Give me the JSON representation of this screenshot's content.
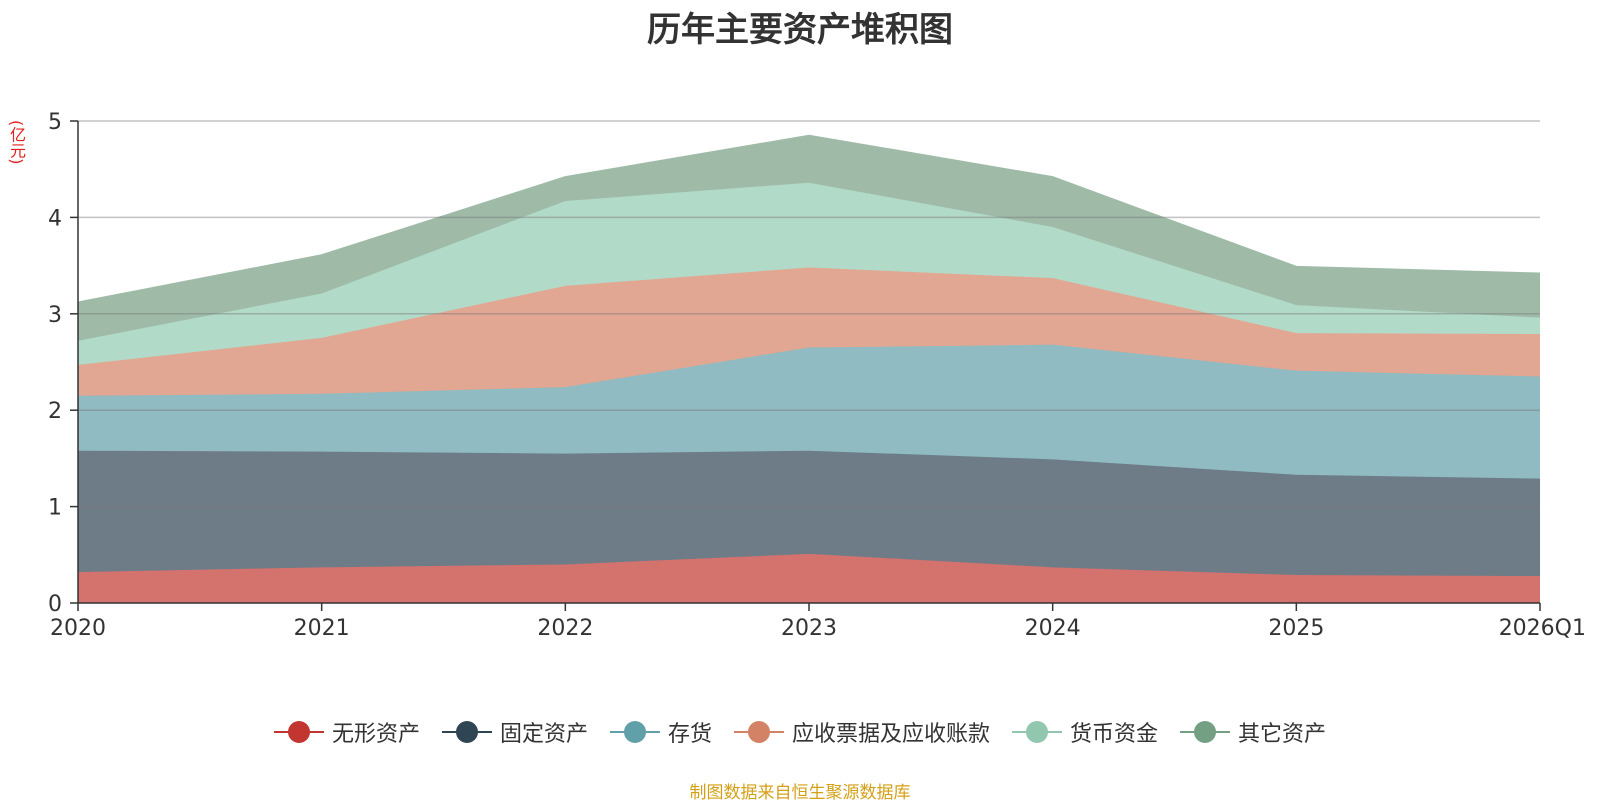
{
  "chart_data": {
    "type": "area",
    "stacked": true,
    "title": "历年主要资产堆积图",
    "ylabel": "(亿元)",
    "categories": [
      "2020",
      "2021",
      "2022",
      "2023",
      "2024",
      "2025",
      "2026Q1"
    ],
    "ylim": [
      0,
      5
    ],
    "yticks": [
      0,
      1,
      2,
      3,
      4,
      5
    ],
    "grid": true,
    "legend_position": "bottom",
    "series": [
      {
        "name": "无形资产",
        "color": "#c23531",
        "fill": "#d4726e",
        "values": [
          0.32,
          0.37,
          0.4,
          0.51,
          0.37,
          0.29,
          0.28
        ]
      },
      {
        "name": "固定资产",
        "color": "#2f4554",
        "fill": "#6e7c87",
        "values": [
          1.26,
          1.2,
          1.15,
          1.07,
          1.12,
          1.04,
          1.01
        ]
      },
      {
        "name": "存货",
        "color": "#61a0a8",
        "fill": "#90bbc2",
        "values": [
          0.57,
          0.6,
          0.69,
          1.07,
          1.19,
          1.08,
          1.06
        ]
      },
      {
        "name": "应收票据及应收账款",
        "color": "#d48265",
        "fill": "#e1a792",
        "values": [
          0.32,
          0.58,
          1.05,
          0.83,
          0.69,
          0.39,
          0.44
        ]
      },
      {
        "name": "货币资金",
        "color": "#91c7ae",
        "fill": "#b2dac8",
        "values": [
          0.25,
          0.46,
          0.88,
          0.88,
          0.53,
          0.29,
          0.17
        ]
      },
      {
        "name": "其它资产",
        "color": "#749f83",
        "fill": "#9fbba8",
        "values": [
          0.4,
          0.4,
          0.25,
          0.49,
          0.52,
          0.4,
          0.46
        ]
      }
    ]
  },
  "legend_items": [
    "无形资产",
    "固定资产",
    "存货",
    "应收票据及应收账款",
    "货币资金",
    "其它资产"
  ],
  "source_text": "制图数据来自恒生聚源数据库"
}
